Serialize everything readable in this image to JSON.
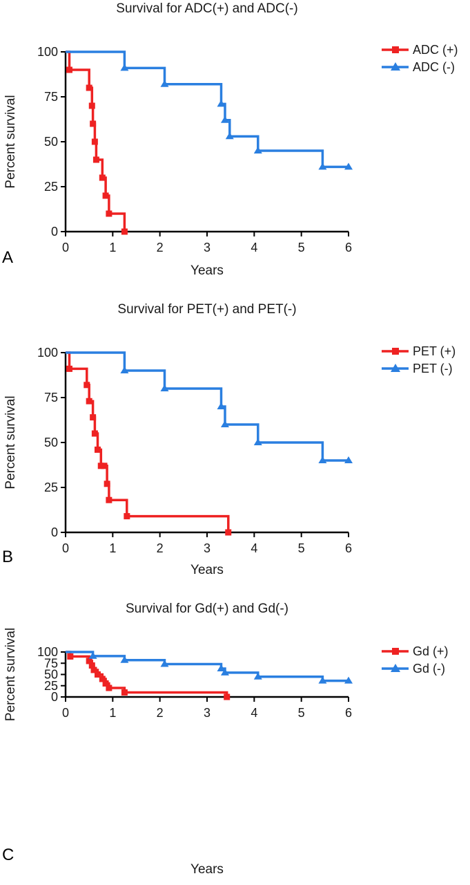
{
  "chart_data": [
    {
      "type": "line",
      "panel": "A",
      "title": "Survival for ADC(+) and ADC(-)",
      "xlabel": "Years",
      "ylabel": "Percent survival",
      "xlim": [
        0,
        6
      ],
      "ylim": [
        0,
        100
      ],
      "xticks": [
        "0",
        "1",
        "2",
        "3",
        "4",
        "5",
        "6"
      ],
      "yticks": [
        "0",
        "25",
        "50",
        "75",
        "100"
      ],
      "legend_position": "top-right",
      "series": [
        {
          "name": "ADC (+)",
          "color": "#ee2222",
          "marker": "square",
          "points": [
            [
              0,
              100
            ],
            [
              0.08,
              90
            ],
            [
              0.5,
              80
            ],
            [
              0.56,
              70
            ],
            [
              0.58,
              60
            ],
            [
              0.62,
              50
            ],
            [
              0.65,
              40
            ],
            [
              0.78,
              30
            ],
            [
              0.85,
              20
            ],
            [
              0.92,
              10
            ],
            [
              1.25,
              0
            ]
          ]
        },
        {
          "name": "ADC (-)",
          "color": "#2a7fe0",
          "marker": "triangle",
          "points": [
            [
              0,
              100
            ],
            [
              1.25,
              91
            ],
            [
              2.1,
              82
            ],
            [
              3.3,
              71
            ],
            [
              3.38,
              62
            ],
            [
              3.48,
              53
            ],
            [
              4.08,
              45
            ],
            [
              5.45,
              36
            ],
            [
              6.0,
              36
            ]
          ]
        }
      ]
    },
    {
      "type": "line",
      "panel": "B",
      "title": "Survival for PET(+) and PET(-)",
      "xlabel": "Years",
      "ylabel": "Percent survival",
      "xlim": [
        0,
        6
      ],
      "ylim": [
        0,
        100
      ],
      "xticks": [
        "0",
        "1",
        "2",
        "3",
        "4",
        "5",
        "6"
      ],
      "yticks": [
        "0",
        "25",
        "50",
        "75",
        "100"
      ],
      "legend_position": "top-right",
      "series": [
        {
          "name": "PET (+)",
          "color": "#ee2222",
          "marker": "square",
          "points": [
            [
              0,
              100
            ],
            [
              0.08,
              91
            ],
            [
              0.45,
              82
            ],
            [
              0.5,
              73
            ],
            [
              0.58,
              64
            ],
            [
              0.62,
              55
            ],
            [
              0.68,
              46
            ],
            [
              0.75,
              37
            ],
            [
              0.82,
              37
            ],
            [
              0.88,
              27
            ],
            [
              0.92,
              18
            ],
            [
              1.3,
              9
            ],
            [
              3.45,
              0
            ]
          ]
        },
        {
          "name": "PET (-)",
          "color": "#2a7fe0",
          "marker": "triangle",
          "points": [
            [
              0,
              100
            ],
            [
              1.25,
              90
            ],
            [
              2.1,
              80
            ],
            [
              3.3,
              70
            ],
            [
              3.38,
              60
            ],
            [
              4.08,
              50
            ],
            [
              5.45,
              40
            ],
            [
              6.0,
              40
            ]
          ]
        }
      ]
    },
    {
      "type": "line",
      "panel": "C",
      "title": "Survival for Gd(+) and Gd(-)",
      "xlabel": "Years",
      "ylabel": "Percent survival",
      "xlim": [
        0,
        6
      ],
      "ylim": [
        0,
        100
      ],
      "xticks": [
        "0",
        "1",
        "2",
        "3",
        "4",
        "5",
        "6"
      ],
      "yticks": [
        "0",
        "25",
        "50",
        "75",
        "100"
      ],
      "legend_position": "top-right",
      "series": [
        {
          "name": "Gd (+)",
          "color": "#ee2222",
          "marker": "square",
          "points": [
            [
              0,
              100
            ],
            [
              0.1,
              90
            ],
            [
              0.5,
              80
            ],
            [
              0.56,
              70
            ],
            [
              0.6,
              60
            ],
            [
              0.68,
              50
            ],
            [
              0.78,
              40
            ],
            [
              0.85,
              30
            ],
            [
              0.92,
              20
            ],
            [
              1.25,
              10
            ],
            [
              3.42,
              0
            ]
          ]
        },
        {
          "name": "Gd (-)",
          "color": "#2a7fe0",
          "marker": "triangle",
          "points": [
            [
              0,
              100
            ],
            [
              0.58,
              91
            ],
            [
              1.25,
              82
            ],
            [
              2.1,
              73
            ],
            [
              3.3,
              63
            ],
            [
              3.38,
              54
            ],
            [
              4.08,
              45
            ],
            [
              5.45,
              36
            ],
            [
              6.0,
              36
            ]
          ]
        }
      ]
    }
  ]
}
